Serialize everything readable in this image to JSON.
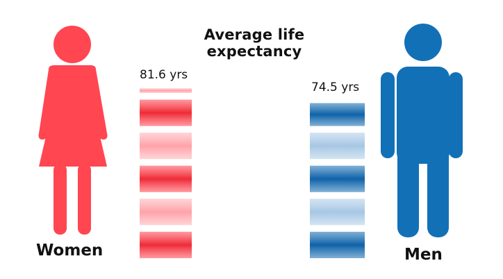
{
  "chart_data": {
    "type": "bar",
    "title": "Average life expectancy",
    "categories": [
      "Women",
      "Men"
    ],
    "values": [
      81.6,
      74.5
    ],
    "value_labels": [
      "81.6 yrs",
      "74.5 yrs"
    ],
    "unit": "yrs",
    "colors": {
      "Women": "#ff4651",
      "Men": "#1270b7"
    },
    "bar_style": "stacked horizontal stripes, alternating dark and light shades",
    "icons": {
      "Women": "woman-figure-icon",
      "Men": "man-figure-icon"
    },
    "grid": false,
    "legend": "none"
  }
}
